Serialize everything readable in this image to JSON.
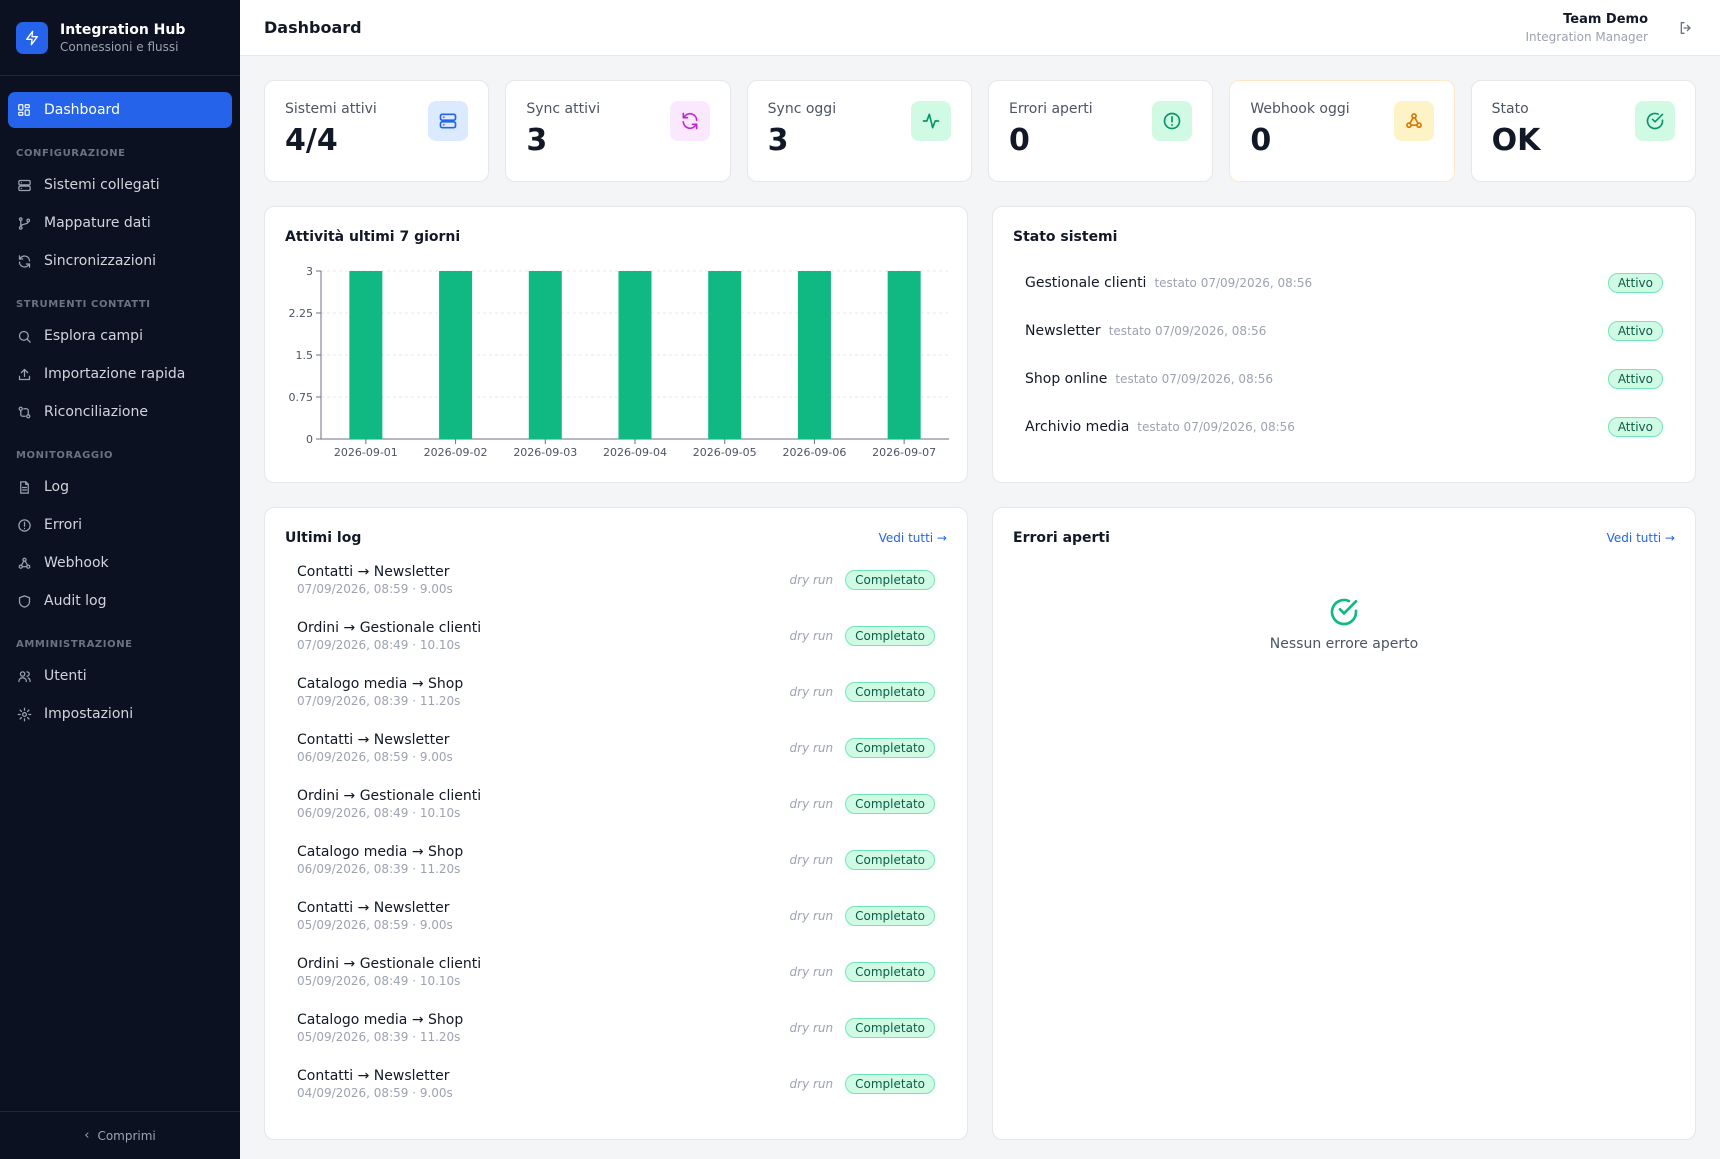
{
  "app": {
    "title": "Integration Hub",
    "subtitle": "Connessioni e flussi"
  },
  "sidebar": {
    "active": {
      "label": "Dashboard",
      "icon": "grid-icon"
    },
    "sections": [
      {
        "title": "CONFIGURAZIONE",
        "items": [
          {
            "label": "Sistemi collegati",
            "icon": "server-icon"
          },
          {
            "label": "Mappature dati",
            "icon": "branch-icon"
          },
          {
            "label": "Sincronizzazioni",
            "icon": "refresh-icon"
          }
        ]
      },
      {
        "title": "STRUMENTI CONTATTI",
        "items": [
          {
            "label": "Esplora campi",
            "icon": "search-icon"
          },
          {
            "label": "Importazione rapida",
            "icon": "upload-icon"
          },
          {
            "label": "Riconciliazione",
            "icon": "reconcile-icon"
          }
        ]
      },
      {
        "title": "MONITORAGGIO",
        "items": [
          {
            "label": "Log",
            "icon": "file-icon"
          },
          {
            "label": "Errori",
            "icon": "alert-icon"
          },
          {
            "label": "Webhook",
            "icon": "webhook-icon"
          },
          {
            "label": "Audit log",
            "icon": "shield-icon"
          }
        ]
      },
      {
        "title": "AMMINISTRAZIONE",
        "items": [
          {
            "label": "Utenti",
            "icon": "users-icon"
          },
          {
            "label": "Impostazioni",
            "icon": "gear-icon"
          }
        ]
      }
    ],
    "collapse_label": "Comprimi"
  },
  "header": {
    "title": "Dashboard",
    "user_name": "Team Demo",
    "user_role": "Integration Manager"
  },
  "stats": [
    {
      "label": "Sistemi attivi",
      "value": "4/4",
      "icon": "server-icon",
      "color": "#2563eb",
      "bg": "#dbeafe"
    },
    {
      "label": "Sync attivi",
      "value": "3",
      "icon": "refresh-icon",
      "color": "#c026d3",
      "bg": "#fae8ff"
    },
    {
      "label": "Sync oggi",
      "value": "3",
      "icon": "activity-icon",
      "color": "#059669",
      "bg": "#d1fae5"
    },
    {
      "label": "Errori aperti",
      "value": "0",
      "icon": "alert-icon",
      "color": "#059669",
      "bg": "#d1fae5"
    },
    {
      "label": "Webhook oggi",
      "value": "0",
      "icon": "webhook-icon",
      "color": "#d97706",
      "bg": "#fef3c7"
    },
    {
      "label": "Stato",
      "value": "OK",
      "icon": "check-circle-icon",
      "color": "#059669",
      "bg": "#d1fae5"
    }
  ],
  "activity": {
    "title": "Attività ultimi 7 giorni"
  },
  "chart_data": {
    "type": "bar",
    "categories": [
      "2026-09-01",
      "2026-09-02",
      "2026-09-03",
      "2026-09-04",
      "2026-09-05",
      "2026-09-06",
      "2026-09-07"
    ],
    "values": [
      3,
      3,
      3,
      3,
      3,
      3,
      3
    ],
    "yticks": [
      "0",
      "0.75",
      "1.5",
      "2.25",
      "3"
    ],
    "ylim": [
      0,
      3
    ],
    "color": "#10b981",
    "grid": true
  },
  "systems": {
    "title": "Stato sistemi",
    "items": [
      {
        "name": "Gestionale clienti",
        "tested": "testato 07/09/2026, 08:56",
        "status": "Attivo"
      },
      {
        "name": "Newsletter",
        "tested": "testato 07/09/2026, 08:56",
        "status": "Attivo"
      },
      {
        "name": "Shop online",
        "tested": "testato 07/09/2026, 08:56",
        "status": "Attivo"
      },
      {
        "name": "Archivio media",
        "tested": "testato 07/09/2026, 08:56",
        "status": "Attivo"
      }
    ]
  },
  "logs": {
    "title": "Ultimi log",
    "link": "Vedi tutti →",
    "items": [
      {
        "title": "Contatti → Newsletter",
        "meta": "07/09/2026, 08:59 · 9.00s",
        "mode": "dry run",
        "status": "Completato"
      },
      {
        "title": "Ordini → Gestionale clienti",
        "meta": "07/09/2026, 08:49 · 10.10s",
        "mode": "dry run",
        "status": "Completato"
      },
      {
        "title": "Catalogo media → Shop",
        "meta": "07/09/2026, 08:39 · 11.20s",
        "mode": "dry run",
        "status": "Completato"
      },
      {
        "title": "Contatti → Newsletter",
        "meta": "06/09/2026, 08:59 · 9.00s",
        "mode": "dry run",
        "status": "Completato"
      },
      {
        "title": "Ordini → Gestionale clienti",
        "meta": "06/09/2026, 08:49 · 10.10s",
        "mode": "dry run",
        "status": "Completato"
      },
      {
        "title": "Catalogo media → Shop",
        "meta": "06/09/2026, 08:39 · 11.20s",
        "mode": "dry run",
        "status": "Completato"
      },
      {
        "title": "Contatti → Newsletter",
        "meta": "05/09/2026, 08:59 · 9.00s",
        "mode": "dry run",
        "status": "Completato"
      },
      {
        "title": "Ordini → Gestionale clienti",
        "meta": "05/09/2026, 08:49 · 10.10s",
        "mode": "dry run",
        "status": "Completato"
      },
      {
        "title": "Catalogo media → Shop",
        "meta": "05/09/2026, 08:39 · 11.20s",
        "mode": "dry run",
        "status": "Completato"
      },
      {
        "title": "Contatti → Newsletter",
        "meta": "04/09/2026, 08:59 · 9.00s",
        "mode": "dry run",
        "status": "Completato"
      }
    ]
  },
  "errors": {
    "title": "Errori aperti",
    "link": "Vedi tutti →",
    "empty_text": "Nessun errore aperto"
  }
}
